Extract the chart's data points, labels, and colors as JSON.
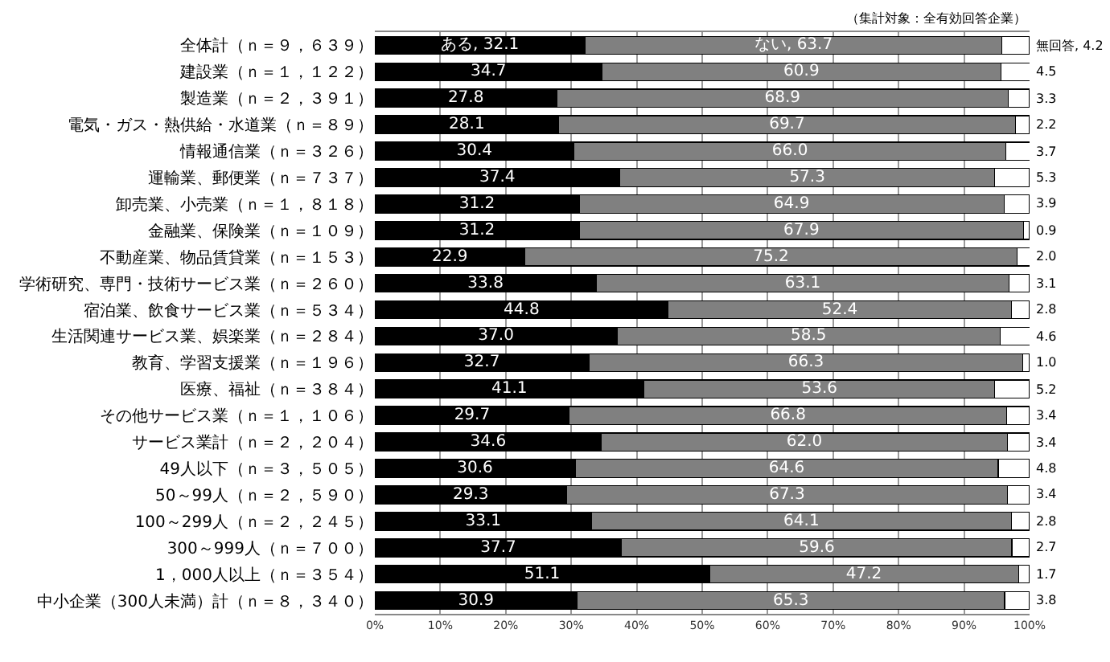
{
  "chart_data": {
    "type": "bar",
    "orientation": "horizontal",
    "stacked": true,
    "legend": false,
    "grid": "x",
    "categories": [
      "全体計（ｎ＝９，６３９）",
      "建設業（ｎ＝１，１２２）",
      "製造業（ｎ＝２，３９１）",
      "電気・ガス・熱供給・水道業（ｎ＝８９）",
      "情報通信業（ｎ＝３２６）",
      "運輸業、郵便業（ｎ＝７３７）",
      "卸売業、小売業（ｎ＝１，８１８）",
      "金融業、保険業（ｎ＝１０９）",
      "不動産業、物品賃貸業（ｎ＝１５３）",
      "学術研究、専門・技術サービス業（ｎ＝２６０）",
      "宿泊業、飲食サービス業（ｎ＝５３４）",
      "生活関連サービス業、娯楽業（ｎ＝２８４）",
      "教育、学習支援業（ｎ＝１９６）",
      "医療、福祉（ｎ＝３８４）",
      "その他サービス業（ｎ＝１，１０６）",
      "サービス業計（ｎ＝２，２０４）",
      "49人以下（ｎ＝３，５０５）",
      "50～99人（ｎ＝２，５９０）",
      "100～299人（ｎ＝２，２４５）",
      "300～999人（ｎ＝７００）",
      "1，000人以上（ｎ＝３５４）",
      "中小企業（300人未満）計（ｎ＝８，３４０）"
    ],
    "series": [
      {
        "name": "ある,",
        "color": "#000000",
        "values": [
          32.1,
          34.7,
          27.8,
          28.1,
          30.4,
          37.4,
          31.2,
          31.2,
          22.9,
          33.8,
          44.8,
          37.0,
          32.7,
          41.1,
          29.7,
          34.6,
          30.6,
          29.3,
          33.1,
          37.7,
          51.1,
          30.9
        ],
        "value_labels": [
          "32.1",
          "34.7",
          "27.8",
          "28.1",
          "30.4",
          "37.4",
          "31.2",
          "31.2",
          "22.9",
          "33.8",
          "44.8",
          "37.0",
          "32.7",
          "41.1",
          "29.7",
          "34.6",
          "30.6",
          "29.3",
          "33.1",
          "37.7",
          "51.1",
          "30.9"
        ]
      },
      {
        "name": "ない,",
        "color": "#808080",
        "values": [
          63.7,
          60.9,
          68.9,
          69.7,
          66.0,
          57.3,
          64.9,
          67.9,
          75.2,
          63.1,
          52.4,
          58.5,
          66.3,
          53.6,
          66.8,
          62.0,
          64.6,
          67.3,
          64.1,
          59.6,
          47.2,
          65.3
        ],
        "value_labels": [
          "63.7",
          "60.9",
          "68.9",
          "69.7",
          "66.0",
          "57.3",
          "64.9",
          "67.9",
          "75.2",
          "63.1",
          "52.4",
          "58.5",
          "66.3",
          "53.6",
          "66.8",
          "62.0",
          "64.6",
          "67.3",
          "64.1",
          "59.6",
          "47.2",
          "65.3"
        ]
      },
      {
        "name": "無回答,",
        "color": "#ffffff",
        "values": [
          4.2,
          4.5,
          3.3,
          2.2,
          3.7,
          5.3,
          3.9,
          0.9,
          2.0,
          3.1,
          2.8,
          4.6,
          1.0,
          5.2,
          3.4,
          3.4,
          4.8,
          3.4,
          2.8,
          2.7,
          1.7,
          3.8
        ],
        "value_labels": [
          "4.2",
          "4.5",
          "3.3",
          "2.2",
          "3.7",
          "5.3",
          "3.9",
          "0.9",
          "2.0",
          "3.1",
          "2.8",
          "4.6",
          "1.0",
          "5.2",
          "3.4",
          "3.4",
          "4.8",
          "3.4",
          "2.8",
          "2.7",
          "1.7",
          "3.8"
        ]
      }
    ],
    "xlim": [
      0,
      100
    ],
    "xticks": [
      {
        "value": 0,
        "label": "0%"
      },
      {
        "value": 10,
        "label": "10%"
      },
      {
        "value": 20,
        "label": "20%"
      },
      {
        "value": 30,
        "label": "30%"
      },
      {
        "value": 40,
        "label": "40%"
      },
      {
        "value": 50,
        "label": "50%"
      },
      {
        "value": 60,
        "label": "60%"
      },
      {
        "value": 70,
        "label": "70%"
      },
      {
        "value": 80,
        "label": "80%"
      },
      {
        "value": 90,
        "label": "90%"
      },
      {
        "value": 100,
        "label": "100%"
      }
    ],
    "annotations": [
      "（集計対象：全有効回答企業）"
    ]
  }
}
